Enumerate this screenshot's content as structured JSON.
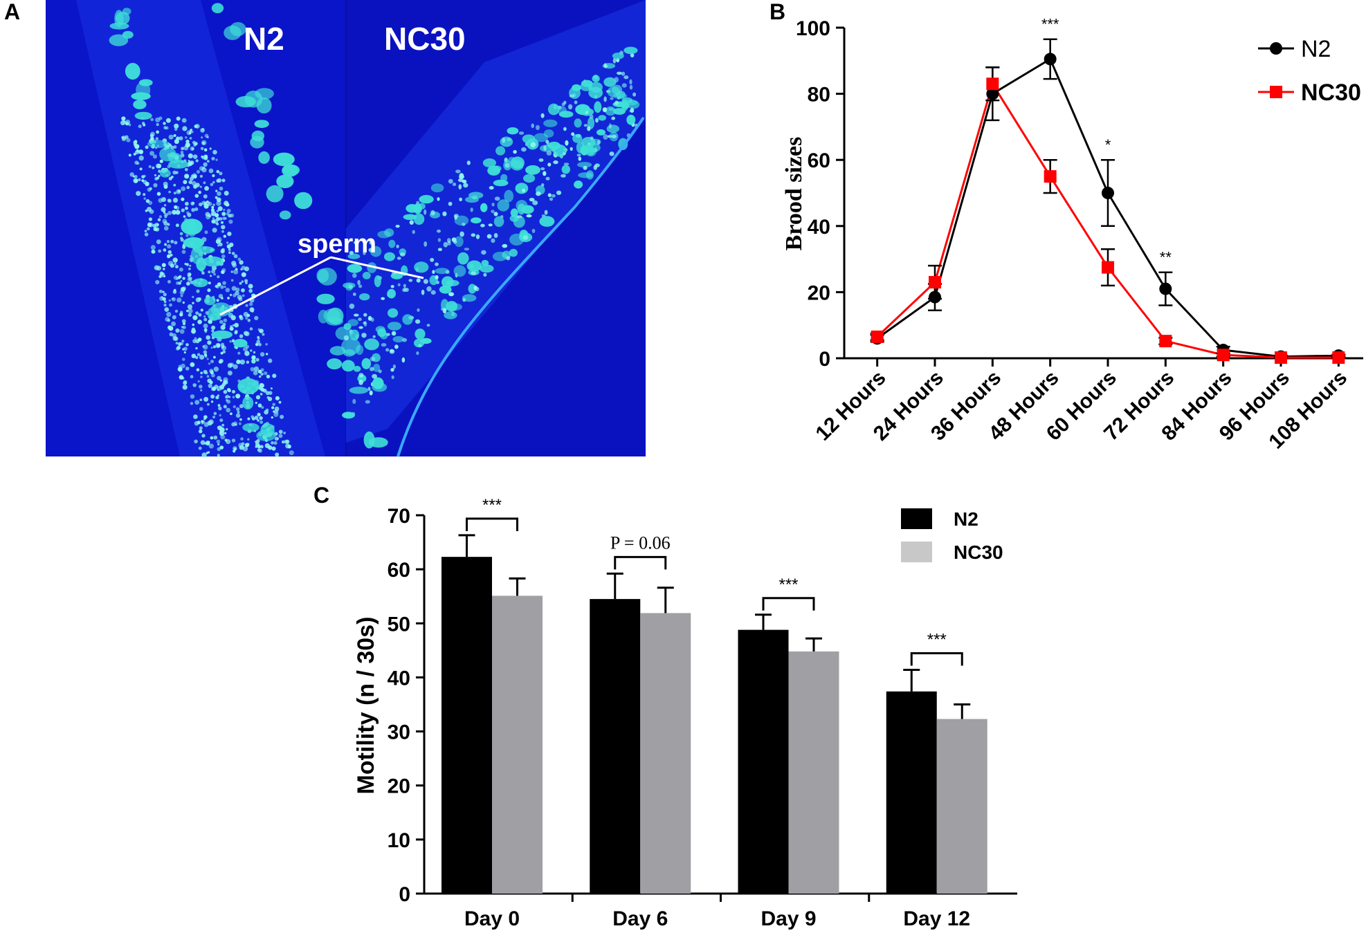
{
  "panel_labels": [
    "A",
    "B",
    "C"
  ],
  "micrograph": {
    "left_label": "N2",
    "right_label": "NC30",
    "annotation": "sperm",
    "colors": {
      "background": "#0a14c8",
      "nuclei": "#3fe0d8",
      "sperm_dots": "#8ff6ee"
    }
  },
  "chart_data": [
    {
      "type": "line",
      "panel": "B",
      "title": "",
      "xlabel": "",
      "ylabel": "Brood sizes",
      "categories": [
        "12 Hours",
        "24 Hours",
        "36 Hours",
        "48 Hours",
        "60 Hours",
        "72 Hours",
        "84 Hours",
        "96 Hours",
        "108 Hours"
      ],
      "ylim": [
        0,
        100
      ],
      "yticks": [
        0,
        20,
        40,
        60,
        80,
        100
      ],
      "series": [
        {
          "name": "N2",
          "color": "#000000",
          "marker": "circle",
          "values": [
            6,
            18.5,
            80,
            90.5,
            50,
            21,
            2.5,
            0.5,
            0.8
          ],
          "errors": [
            1,
            4,
            8,
            6,
            10,
            5,
            1,
            0.3,
            0.3
          ]
        },
        {
          "name": "NC30",
          "color": "#ff0000",
          "marker": "square",
          "values": [
            6.5,
            23,
            83,
            55,
            27.5,
            5.2,
            1,
            0.2,
            0.2
          ],
          "errors": [
            1,
            5,
            5,
            5,
            5.5,
            1,
            0.5,
            0.2,
            0.2
          ]
        }
      ],
      "annotations": [
        {
          "category": "48 Hours",
          "text": "***"
        },
        {
          "category": "60 Hours",
          "text": "*"
        },
        {
          "category": "72 Hours",
          "text": "**"
        }
      ],
      "legend": "top-right",
      "grid": false
    },
    {
      "type": "bar",
      "panel": "C",
      "title": "",
      "xlabel": "",
      "ylabel": "Motility (n / 30s)",
      "categories": [
        "Day 0",
        "Day 6",
        "Day 9",
        "Day 12"
      ],
      "ylim": [
        0,
        70
      ],
      "yticks": [
        0,
        10,
        20,
        30,
        40,
        50,
        60,
        70
      ],
      "series": [
        {
          "name": "N2",
          "color": "#000000",
          "values": [
            62.3,
            54.5,
            48.8,
            37.4
          ],
          "errors": [
            4,
            4.7,
            2.8,
            4
          ]
        },
        {
          "name": "NC30",
          "color": "#a0a0a4",
          "values": [
            55.1,
            51.9,
            44.8,
            32.3
          ],
          "errors": [
            3.2,
            4.7,
            2.4,
            2.7
          ]
        }
      ],
      "significance": [
        "***",
        "P = 0.06",
        "***",
        "***"
      ],
      "legend": "top-right",
      "grid": false
    }
  ]
}
